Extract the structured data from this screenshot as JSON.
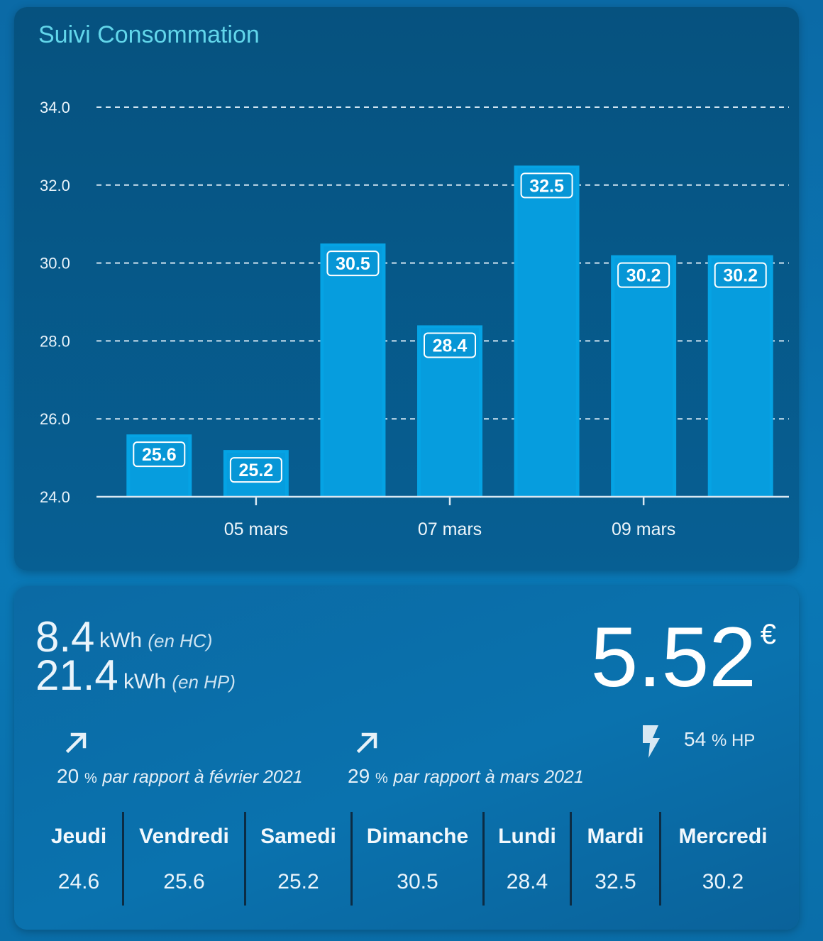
{
  "card_title": "Suivi Consommation",
  "chart_data": {
    "type": "bar",
    "values": [
      25.6,
      25.2,
      30.5,
      28.4,
      32.5,
      30.2,
      30.2
    ],
    "data_labels": [
      "25.6",
      "25.2",
      "30.5",
      "28.4",
      "32.5",
      "30.2",
      "30.2"
    ],
    "x_ticks": [
      {
        "label": "05 mars",
        "index": 1
      },
      {
        "label": "07 mars",
        "index": 3
      },
      {
        "label": "09 mars",
        "index": 5
      }
    ],
    "y_ticks": [
      "24.0",
      "26.0",
      "28.0",
      "30.0",
      "32.0",
      "34.0"
    ],
    "ylim": [
      24,
      34
    ],
    "grid": true,
    "bar_color": "#05a3e4",
    "label_color": "#ffffff"
  },
  "stats": {
    "hc_value": "8.4",
    "hc_unit": "kWh",
    "hc_note": "(en HC)",
    "hp_value": "21.4",
    "hp_unit": "kWh",
    "hp_note": "(en HP)",
    "price": "5.52",
    "currency": "€",
    "trend1_value": "20",
    "trend1_pct": "%",
    "trend1_text": "par rapport à février 2021",
    "trend2_value": "29",
    "trend2_pct": "%",
    "trend2_text": "par rapport à mars 2021",
    "hp_share_value": "54",
    "hp_share_unit": "% HP"
  },
  "days": [
    {
      "name": "Jeudi",
      "value": "24.6"
    },
    {
      "name": "Vendredi",
      "value": "25.6"
    },
    {
      "name": "Samedi",
      "value": "25.2"
    },
    {
      "name": "Dimanche",
      "value": "30.5"
    },
    {
      "name": "Lundi",
      "value": "28.4"
    },
    {
      "name": "Mardi",
      "value": "32.5"
    },
    {
      "name": "Mercredi",
      "value": "30.2"
    }
  ],
  "icons": {
    "trend": "arrow-up-right-icon",
    "hp": "lightning-bolt-icon"
  }
}
